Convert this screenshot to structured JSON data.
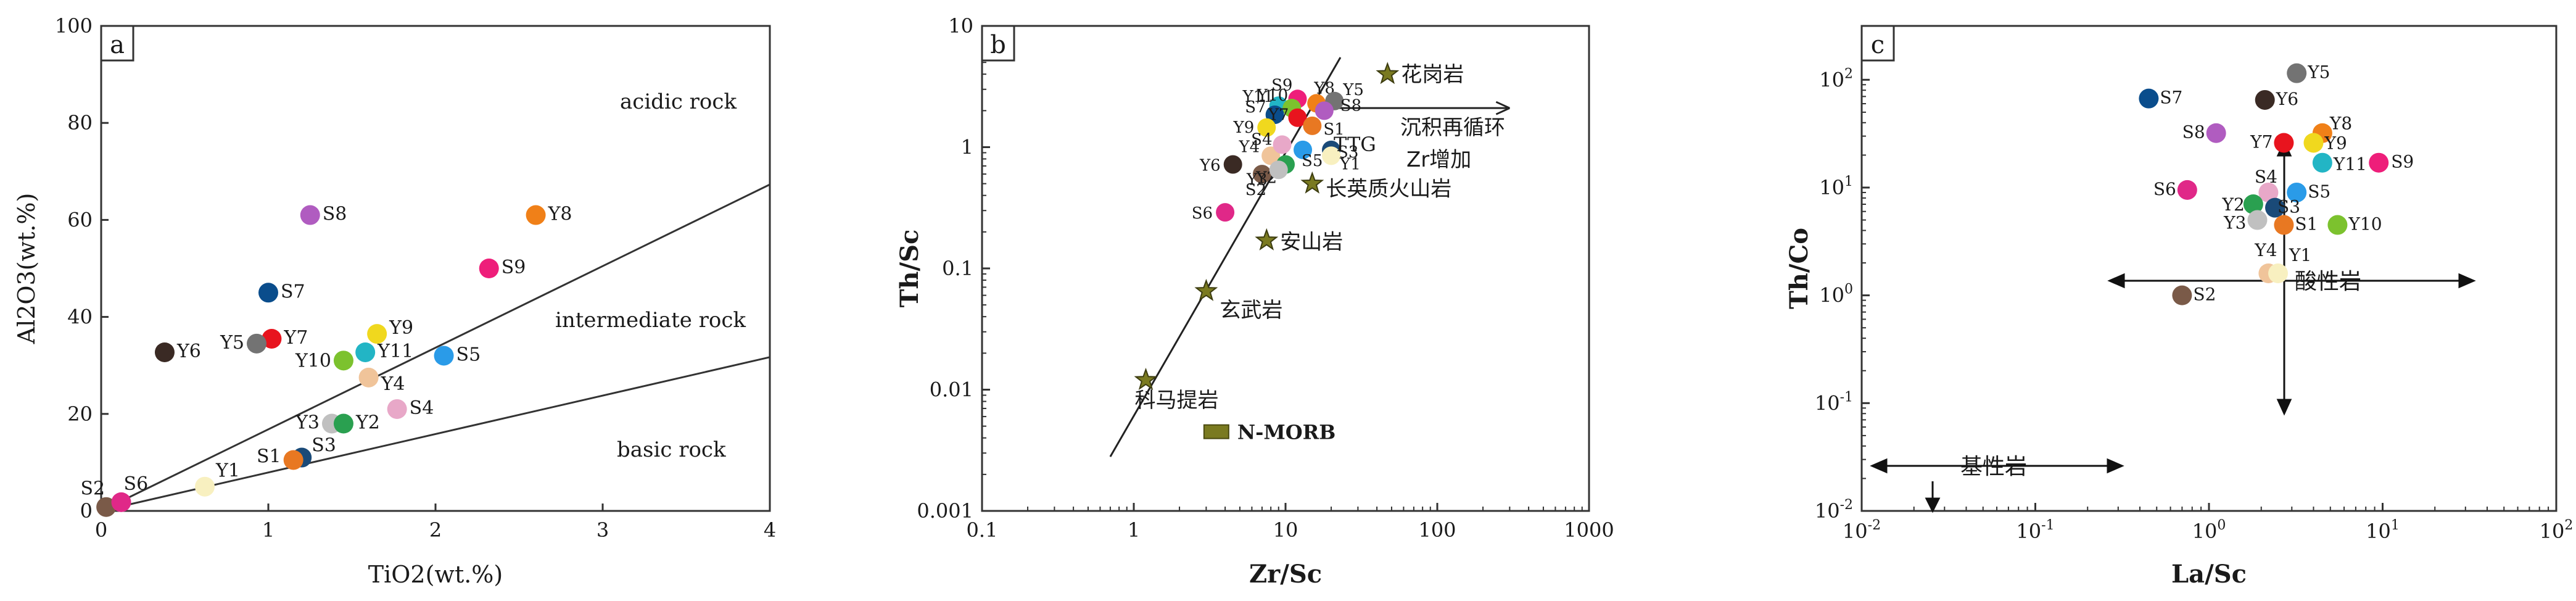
{
  "chart_data": [
    {
      "panel": "a",
      "type": "scatter",
      "xlabel": "TiO2(wt.%)",
      "ylabel": "Al2O3(wt.%)",
      "xlim": [
        0,
        4
      ],
      "ylim": [
        0,
        100
      ],
      "xticks": [
        0,
        1,
        2,
        3,
        4
      ],
      "yticks": [
        0,
        20,
        40,
        60,
        80,
        100
      ],
      "region_labels": [
        "acidic rock",
        "intermediate rock",
        "basic rock"
      ],
      "boundary_lines": [
        {
          "name": "acidic-intermediate",
          "from": [
            0,
            0
          ],
          "to": [
            4,
            67.3
          ]
        },
        {
          "name": "intermediate-basic",
          "from": [
            0,
            0
          ],
          "to": [
            4,
            31.7
          ]
        }
      ],
      "points": [
        {
          "label": "S8",
          "x": 1.25,
          "y": 61,
          "color": "#b05cc0"
        },
        {
          "label": "Y8",
          "x": 2.6,
          "y": 61,
          "color": "#f08018"
        },
        {
          "label": "S9",
          "x": 2.32,
          "y": 50,
          "color": "#ee1e7a"
        },
        {
          "label": "S7",
          "x": 1.0,
          "y": 45,
          "color": "#0a4d8c"
        },
        {
          "label": "Y7",
          "x": 1.02,
          "y": 35.5,
          "color": "#e8141e"
        },
        {
          "label": "Y5",
          "x": 0.93,
          "y": 34.5,
          "color": "#737373"
        },
        {
          "label": "Y6",
          "x": 0.38,
          "y": 32.7,
          "color": "#3a2a24"
        },
        {
          "label": "Y9",
          "x": 1.65,
          "y": 36.5,
          "color": "#f0d81e"
        },
        {
          "label": "Y11",
          "x": 1.58,
          "y": 32.7,
          "color": "#22b5c5"
        },
        {
          "label": "Y10",
          "x": 1.45,
          "y": 31,
          "color": "#7cc22e"
        },
        {
          "label": "S5",
          "x": 2.05,
          "y": 32,
          "color": "#2a9be8"
        },
        {
          "label": "Y4",
          "x": 1.6,
          "y": 27.5,
          "color": "#f0c49a"
        },
        {
          "label": "S4",
          "x": 1.77,
          "y": 21,
          "color": "#e8a8c8"
        },
        {
          "label": "Y3",
          "x": 1.38,
          "y": 18,
          "color": "#c0c0c0"
        },
        {
          "label": "Y2",
          "x": 1.45,
          "y": 18,
          "color": "#2aa050"
        },
        {
          "label": "S3",
          "x": 1.2,
          "y": 11,
          "color": "#1a4a78"
        },
        {
          "label": "S1",
          "x": 1.15,
          "y": 10.5,
          "color": "#e87822"
        },
        {
          "label": "Y1",
          "x": 0.62,
          "y": 5,
          "color": "#f8f0c0"
        },
        {
          "label": "S2",
          "x": 0.03,
          "y": 0.8,
          "color": "#7a5a48"
        },
        {
          "label": "S6",
          "x": 0.12,
          "y": 1.8,
          "color": "#e02888"
        }
      ]
    },
    {
      "panel": "b",
      "type": "scatter",
      "xscale": "log",
      "yscale": "log",
      "xlabel": "Zr/Sc",
      "ylabel": "Th/Sc",
      "xlim": [
        0.1,
        1000
      ],
      "ylim": [
        0.001,
        10
      ],
      "xtick_labels": [
        "0.1",
        "1",
        "10",
        "100",
        "1000"
      ],
      "ytick_labels": [
        "0.001",
        "0.01",
        "0.1",
        "1",
        "10"
      ],
      "reference_stars": [
        {
          "label": "花岗岩",
          "x": 47,
          "y": 4
        },
        {
          "label": "长英质火山岩",
          "x": 15,
          "y": 0.5
        },
        {
          "label": "安山岩",
          "x": 7.5,
          "y": 0.17
        },
        {
          "label": "玄武岩",
          "x": 3,
          "y": 0.065
        },
        {
          "label": "科马提岩",
          "x": 1.2,
          "y": 0.012
        }
      ],
      "reference_box": {
        "label": "N-MORB",
        "x": 3.5,
        "y": 0.0045
      },
      "annotations": [
        "TTG",
        "沉积再循环",
        "Zr增加"
      ],
      "trend_line": {
        "from": [
          0.7,
          0.0028
        ],
        "to": [
          23,
          5.5
        ]
      },
      "recycling_arrow": {
        "from": [
          15,
          2.1
        ],
        "to": [
          300,
          2.1
        ]
      },
      "points": [
        {
          "label": "S9",
          "x": 12,
          "y": 2.5,
          "color": "#ee1e7a"
        },
        {
          "label": "Y11",
          "x": 9,
          "y": 2.2,
          "color": "#22b5c5"
        },
        {
          "label": "Y10",
          "x": 11,
          "y": 2.1,
          "color": "#7cc22e"
        },
        {
          "label": "Y8",
          "x": 16,
          "y": 2.3,
          "color": "#f08018"
        },
        {
          "label": "Y5",
          "x": 21,
          "y": 2.4,
          "color": "#737373"
        },
        {
          "label": "S8",
          "x": 18,
          "y": 2.0,
          "color": "#b05cc0"
        },
        {
          "label": "S7",
          "x": 8.5,
          "y": 1.85,
          "color": "#0a4d8c"
        },
        {
          "label": "Y7",
          "x": 12,
          "y": 1.75,
          "color": "#e8141e"
        },
        {
          "label": "Y9",
          "x": 7.5,
          "y": 1.45,
          "color": "#f0d81e"
        },
        {
          "label": "S1",
          "x": 15,
          "y": 1.5,
          "color": "#e87822"
        },
        {
          "label": "Y4",
          "x": 8,
          "y": 0.85,
          "color": "#f0c49a"
        },
        {
          "label": "S4",
          "x": 9.5,
          "y": 1.05,
          "color": "#e8a8c8"
        },
        {
          "label": "Y6",
          "x": 4.5,
          "y": 0.72,
          "color": "#3a2a24"
        },
        {
          "label": "S2",
          "x": 7,
          "y": 0.6,
          "color": "#7a5a48"
        },
        {
          "label": "S5",
          "x": 13,
          "y": 0.95,
          "color": "#2a9be8"
        },
        {
          "label": "S3",
          "x": 20,
          "y": 0.95,
          "color": "#1a4a78"
        },
        {
          "label": "Y2",
          "x": 10,
          "y": 0.72,
          "color": "#2aa050"
        },
        {
          "label": "Y3",
          "x": 9,
          "y": 0.65,
          "color": "#c0c0c0"
        },
        {
          "label": "Y1",
          "x": 20,
          "y": 0.85,
          "color": "#f8f0c0"
        },
        {
          "label": "S6",
          "x": 4,
          "y": 0.29,
          "color": "#e02888"
        }
      ]
    },
    {
      "panel": "c",
      "type": "scatter",
      "xscale": "log",
      "yscale": "log",
      "xlabel": "La/Sc",
      "ylabel": "Th/Co",
      "xlim": [
        0.01,
        100
      ],
      "ylim": [
        0.01,
        316
      ],
      "xtick_labels": [
        "10-2",
        "10-1",
        "100",
        "101",
        "102"
      ],
      "ytick_labels": [
        "10-2",
        "10-1",
        "100",
        "101",
        "102"
      ],
      "region_labels": [
        "酸性岩",
        "基性岩"
      ],
      "points": [
        {
          "label": "Y5",
          "x": 3.2,
          "y": 115,
          "color": "#737373"
        },
        {
          "label": "S7",
          "x": 0.45,
          "y": 67,
          "color": "#0a4d8c"
        },
        {
          "label": "Y6",
          "x": 2.1,
          "y": 65,
          "color": "#3a2a24"
        },
        {
          "label": "S8",
          "x": 1.1,
          "y": 32,
          "color": "#b05cc0"
        },
        {
          "label": "Y8",
          "x": 4.5,
          "y": 32,
          "color": "#f08018"
        },
        {
          "label": "Y7",
          "x": 2.7,
          "y": 26,
          "color": "#e8141e"
        },
        {
          "label": "Y9",
          "x": 4.0,
          "y": 26,
          "color": "#f0d81e"
        },
        {
          "label": "Y11",
          "x": 4.5,
          "y": 17,
          "color": "#22b5c5"
        },
        {
          "label": "S9",
          "x": 9.5,
          "y": 17,
          "color": "#ee1e7a"
        },
        {
          "label": "S6",
          "x": 0.75,
          "y": 9.5,
          "color": "#e02888"
        },
        {
          "label": "S4",
          "x": 2.2,
          "y": 9,
          "color": "#e8a8c8"
        },
        {
          "label": "S5",
          "x": 3.2,
          "y": 9,
          "color": "#2a9be8"
        },
        {
          "label": "Y2",
          "x": 1.8,
          "y": 7,
          "color": "#2aa050"
        },
        {
          "label": "S3",
          "x": 2.4,
          "y": 6.5,
          "color": "#1a4a78"
        },
        {
          "label": "Y3",
          "x": 1.9,
          "y": 5,
          "color": "#c0c0c0"
        },
        {
          "label": "S1",
          "x": 2.7,
          "y": 4.5,
          "color": "#e87822"
        },
        {
          "label": "Y10",
          "x": 5.5,
          "y": 4.5,
          "color": "#7cc22e"
        },
        {
          "label": "Y4",
          "x": 2.2,
          "y": 1.6,
          "color": "#f0c49a"
        },
        {
          "label": "Y1",
          "x": 2.5,
          "y": 1.6,
          "color": "#f8f0c0"
        },
        {
          "label": "S2",
          "x": 0.7,
          "y": 1.0,
          "color": "#7a5a48"
        }
      ]
    }
  ]
}
